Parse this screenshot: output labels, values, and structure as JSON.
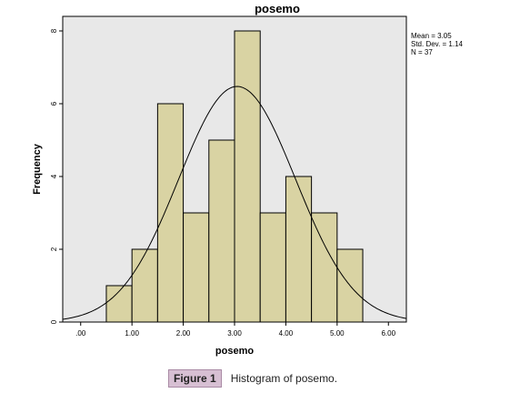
{
  "chart_data": {
    "type": "bar",
    "title": "posemo",
    "xlabel": "posemo",
    "ylabel": "Frequency",
    "bin_edges": [
      0.5,
      1.0,
      1.5,
      2.0,
      2.5,
      3.0,
      3.5,
      4.0,
      4.5,
      5.0,
      5.5
    ],
    "values": [
      1,
      2,
      6,
      3,
      5,
      8,
      3,
      4,
      3,
      2
    ],
    "xlim": [
      -0.35,
      6.35
    ],
    "ylim": [
      0,
      8.4
    ],
    "x_ticks": [
      0,
      1,
      2,
      3,
      4,
      5,
      6
    ],
    "x_tick_labels": [
      ".00",
      "1.00",
      "2.00",
      "3.00",
      "4.00",
      "5.00",
      "6.00"
    ],
    "y_ticks": [
      0,
      2,
      4,
      6,
      8
    ],
    "y_tick_labels": [
      "0",
      "2",
      "4",
      "6",
      "8"
    ],
    "normal_curve": {
      "mean": 3.05,
      "sd": 1.14,
      "n": 37,
      "bin_width": 0.5
    },
    "stats": [
      "Mean = 3.05",
      "Std. Dev. = 1.14",
      "N = 37"
    ],
    "bar_color": "#d9d3a3",
    "bar_stroke": "#000000",
    "plot_background": "#e8e8e8",
    "grid": false
  },
  "caption": {
    "label": "Figure 1",
    "text": "Histogram of posemo."
  }
}
